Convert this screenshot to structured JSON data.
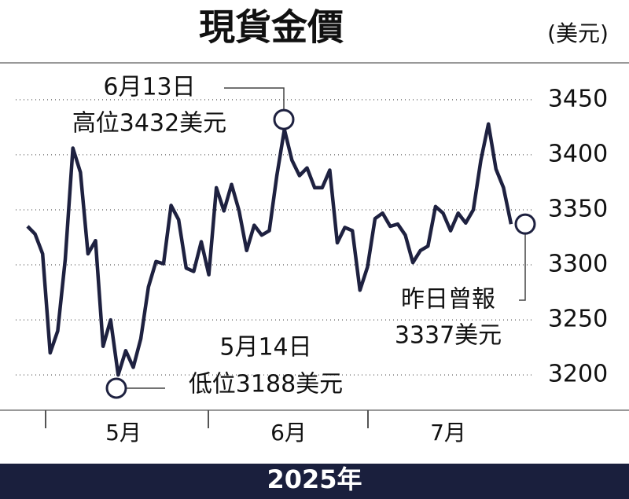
{
  "chart_data": {
    "type": "line",
    "title": "現貨金價",
    "unit": "(美元)",
    "xlabel": "2025年",
    "month_labels": [
      "5月",
      "6月",
      "7月"
    ],
    "values": [
      3335,
      3328,
      3310,
      3220,
      3240,
      3305,
      3406,
      3384,
      3310,
      3322,
      3226,
      3250,
      3200,
      3222,
      3207,
      3233,
      3280,
      3303,
      3301,
      3354,
      3341,
      3297,
      3294,
      3321,
      3291,
      3370,
      3349,
      3373,
      3349,
      3313,
      3336,
      3327,
      3331,
      3381,
      3423,
      3395,
      3381,
      3388,
      3370,
      3370,
      3386,
      3320,
      3334,
      3331,
      3277,
      3298,
      3342,
      3347,
      3335,
      3337,
      3327,
      3302,
      3313,
      3317,
      3353,
      3347,
      3331,
      3347,
      3338,
      3350,
      3395,
      3428,
      3387,
      3370,
      3337
    ],
    "color": "#1e2140",
    "ylim": [
      3168,
      3482
    ],
    "yticks": [
      3200,
      3250,
      3300,
      3350,
      3400,
      3450
    ],
    "grid": true,
    "annotations": {
      "high": {
        "date": "6月13日",
        "text": "高位3432美元",
        "value": 3432
      },
      "low": {
        "date": "5月14日",
        "text": "低位3188美元",
        "value": 3188
      },
      "last": {
        "date": "昨日曾報",
        "text": "3337美元",
        "value": 3337
      }
    }
  }
}
